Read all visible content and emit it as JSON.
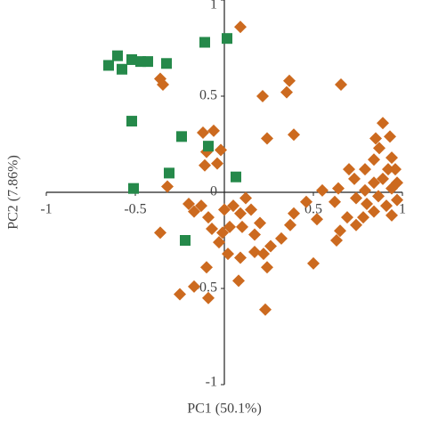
{
  "chart_data": {
    "type": "scatter",
    "x_label": "PC1 (50.1%)",
    "y_label": "PC2 (7.86%)",
    "xlim": [
      -1,
      1
    ],
    "ylim": [
      -1,
      1
    ],
    "xticks": [
      -1,
      -0.5,
      0.5,
      1
    ],
    "yticks": [
      -1,
      -0.5,
      0,
      0.5,
      1
    ],
    "series": [
      {
        "color": "#cc6a1f",
        "marker": "diamond",
        "x": [
          0.09,
          -0.36,
          -0.345,
          0.365,
          0.35,
          0.215,
          0.655,
          0.89,
          0.85,
          0.93,
          0.39,
          0.24,
          -0.12,
          -0.06,
          -0.1,
          -0.02,
          -0.11,
          -0.04,
          -0.32,
          -0.2,
          -0.13,
          -0.09,
          0,
          0.05,
          0.09,
          0.15,
          0.2,
          0.1,
          0.17,
          -0.01,
          -0.03,
          0.02,
          0.09,
          0.17,
          0.22,
          0.24,
          0.08,
          -0.1,
          -0.09,
          -0.25,
          -0.17,
          0.23,
          -0.36,
          0.32,
          0.37,
          0.46,
          0.52,
          0.5,
          0.63,
          0.65,
          0.69,
          0.62,
          0.64,
          0.55,
          0.74,
          0.78,
          0.7,
          0.73,
          0.79,
          0.84,
          0.94,
          0.96,
          0.89,
          0.84,
          0.79,
          0.865,
          0.94,
          0.97,
          0.91,
          0.84,
          0.8,
          0.74,
          0.94,
          0.97,
          0.92,
          0.87,
          0.12,
          0.03,
          -0.07,
          -0.17,
          0.26,
          0.39
        ],
        "y": [
          0.86,
          0.59,
          0.56,
          0.58,
          0.52,
          0.5,
          0.56,
          0.36,
          0.28,
          0.29,
          0.3,
          0.28,
          0.31,
          0.32,
          0.21,
          0.22,
          0.14,
          0.15,
          0.03,
          -0.06,
          -0.07,
          -0.13,
          -0.09,
          -0.07,
          -0.11,
          -0.09,
          -0.16,
          -0.18,
          -0.22,
          -0.21,
          -0.26,
          -0.32,
          -0.34,
          -0.31,
          -0.32,
          -0.39,
          -0.46,
          -0.39,
          -0.55,
          -0.53,
          -0.49,
          -0.61,
          -0.21,
          -0.24,
          -0.17,
          -0.05,
          -0.14,
          -0.37,
          -0.25,
          -0.2,
          -0.13,
          -0.05,
          0.02,
          0.01,
          -0.17,
          -0.13,
          0.12,
          0.07,
          0.12,
          0.17,
          0.18,
          0.12,
          0.07,
          0.05,
          0.01,
          -0.02,
          0.02,
          -0.04,
          -0.07,
          -0.1,
          -0.06,
          -0.03,
          -0.12,
          0.05,
          0.12,
          0.23,
          -0.03,
          -0.18,
          -0.19,
          -0.1,
          -0.28,
          -0.11
        ]
      },
      {
        "color": "#25894a",
        "marker": "square",
        "x": [
          -0.6,
          -0.65,
          -0.575,
          -0.52,
          -0.47,
          -0.43,
          -0.325,
          -0.11,
          0.015,
          -0.52,
          -0.24,
          -0.09,
          -0.31,
          0.065,
          -0.51,
          -0.22
        ],
        "y": [
          0.71,
          0.66,
          0.64,
          0.69,
          0.68,
          0.68,
          0.67,
          0.78,
          0.8,
          0.37,
          0.29,
          0.24,
          0.1,
          0.08,
          0.02,
          -0.25
        ]
      }
    ]
  }
}
